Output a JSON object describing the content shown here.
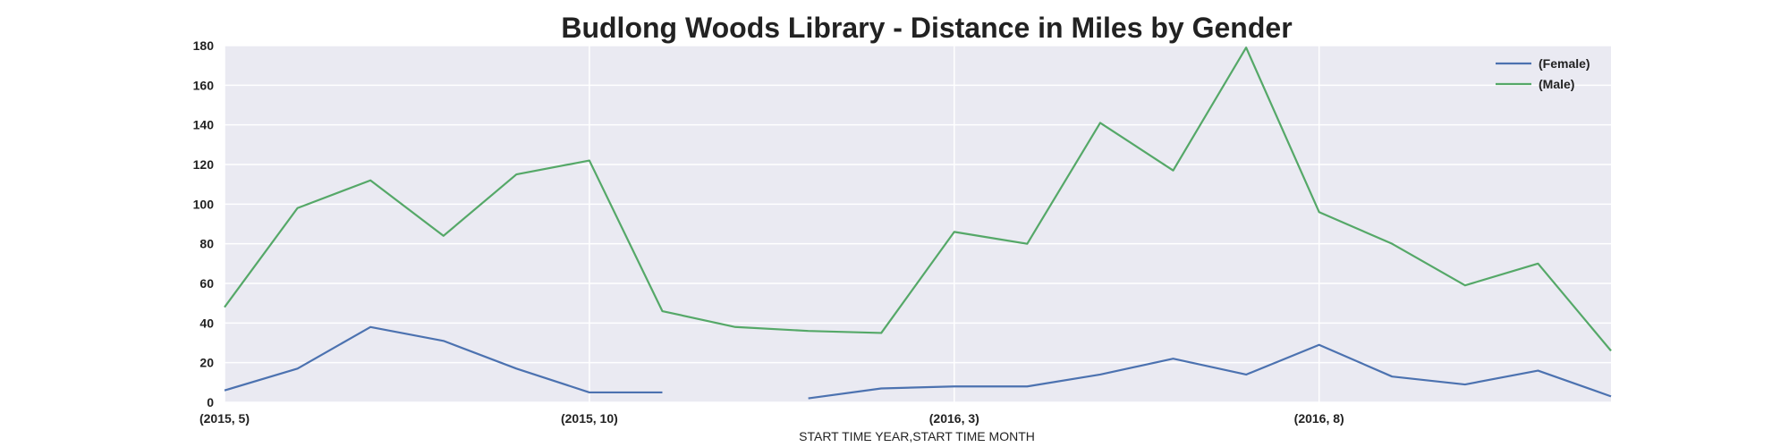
{
  "chart_data": {
    "type": "line",
    "title": "Budlong Woods Library - Distance in Miles by Gender",
    "xlabel": "START TIME YEAR,START TIME MONTH",
    "ylabel": "",
    "ylim": [
      0,
      180
    ],
    "yticks": [
      0,
      20,
      40,
      60,
      80,
      100,
      120,
      140,
      160,
      180
    ],
    "x": [
      "(2015, 5)",
      "(2015, 6)",
      "(2015, 7)",
      "(2015, 8)",
      "(2015, 9)",
      "(2015, 10)",
      "(2015, 11)",
      "(2015, 12)",
      "(2016, 1)",
      "(2016, 2)",
      "(2016, 3)",
      "(2016, 4)",
      "(2016, 5)",
      "(2016, 6)",
      "(2016, 7)",
      "(2016, 8)",
      "(2016, 9)",
      "(2016, 10)",
      "(2016, 11)",
      "(2016, 12)"
    ],
    "xtick_labels": [
      {
        "index": 0,
        "label": "(2015, 5)"
      },
      {
        "index": 5,
        "label": "(2015, 10)"
      },
      {
        "index": 10,
        "label": "(2016, 3)"
      },
      {
        "index": 15,
        "label": "(2016, 8)"
      }
    ],
    "series": [
      {
        "name": "(Female)",
        "color": "#4c72b0",
        "values": [
          6,
          17,
          38,
          31,
          17,
          5,
          5,
          null,
          2,
          7,
          8,
          8,
          14,
          22,
          14,
          29,
          13,
          9,
          16,
          3
        ]
      },
      {
        "name": "(Male)",
        "color": "#55a868",
        "values": [
          48,
          98,
          112,
          84,
          115,
          122,
          46,
          38,
          36,
          35,
          86,
          80,
          141,
          117,
          179,
          96,
          80,
          59,
          70,
          26
        ]
      }
    ],
    "grid": true,
    "legend_position": "top-right",
    "colors": {
      "plot_background": "#eaeaf2",
      "grid": "#ffffff"
    }
  }
}
